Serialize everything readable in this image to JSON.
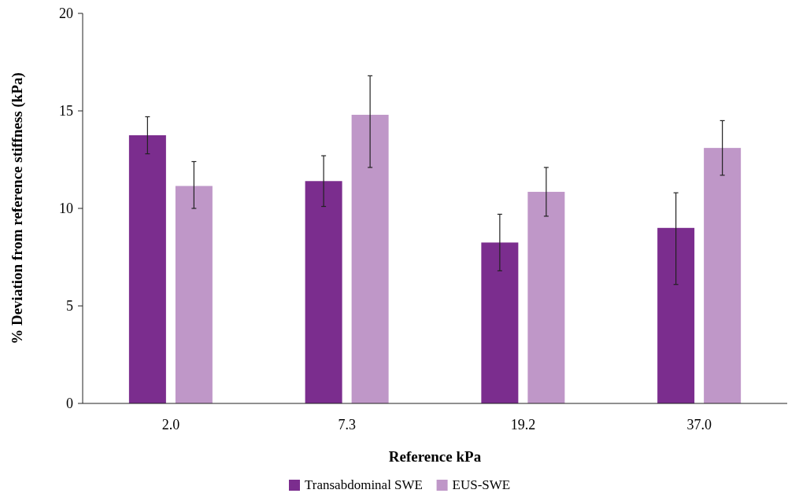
{
  "chart_data": {
    "type": "bar",
    "xlabel": "Reference kPa",
    "ylabel": "% Deviation from reference stiffness (kPa)",
    "categories": [
      "2.0",
      "7.3",
      "19.2",
      "37.0"
    ],
    "series": [
      {
        "name": "Transabdominal SWE",
        "color": "#7b2d8e",
        "values": [
          13.75,
          11.4,
          8.25,
          9.0
        ],
        "errors": [
          [
            12.8,
            14.7
          ],
          [
            10.1,
            12.7
          ],
          [
            6.8,
            9.7
          ],
          [
            6.1,
            10.8
          ]
        ]
      },
      {
        "name": "EUS-SWE",
        "color": "#bf97c8",
        "values": [
          11.15,
          14.8,
          10.85,
          13.1
        ],
        "errors": [
          [
            10.0,
            12.4
          ],
          [
            12.1,
            16.8
          ],
          [
            9.6,
            12.1
          ],
          [
            11.7,
            14.5
          ]
        ]
      }
    ],
    "ylim": [
      0,
      20
    ],
    "yticks": [
      0,
      5,
      10,
      15,
      20
    ],
    "legend": "bottom"
  }
}
